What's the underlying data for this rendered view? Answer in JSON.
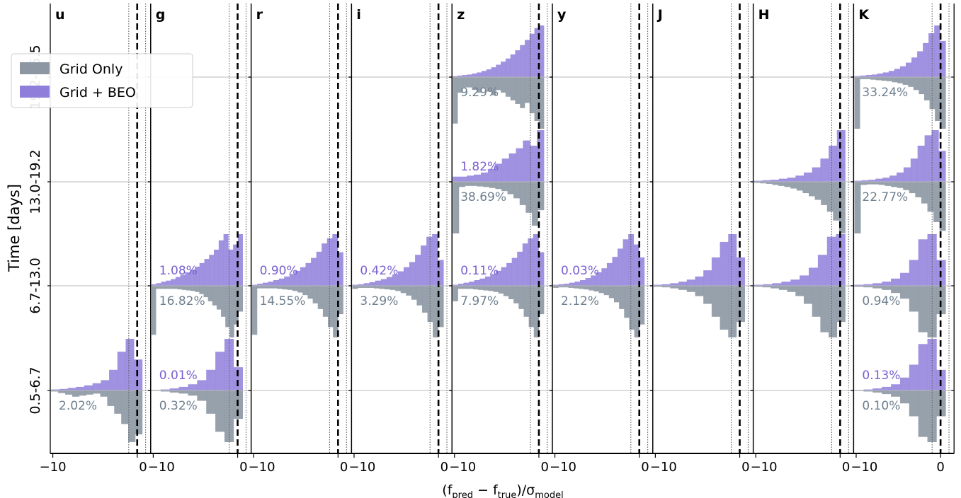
{
  "chart_data": {
    "type": "bar",
    "description_free": true,
    "panels": [
      "u",
      "g",
      "r",
      "i",
      "z",
      "y",
      "J",
      "H",
      "K"
    ],
    "time_bins": [
      "0.5-6.7",
      "6.7-13.0",
      "13.0-19.2",
      "19.2-25.5"
    ],
    "ylabel": "Time [days]",
    "xlabel": "(f_pred − f_true)/σ_model",
    "xlabel_parts": {
      "f": "(f",
      "pred": "pred",
      "minus": " − f",
      "true": "true",
      "close": ")/σ",
      "model": "model"
    },
    "x_ticks": [
      "−10",
      "0"
    ],
    "xlim": [
      -10.3,
      1.6
    ],
    "legend": {
      "position": "upper-left",
      "entries": [
        {
          "label": "Grid Only",
          "color": "#8c97a3"
        },
        {
          "label": "Grid + BEO",
          "color": "#8f7fdb"
        }
      ]
    },
    "colors": {
      "grid_only": "#8c97a3",
      "grid_beo": "#8f7fdb",
      "grid_only_text": "#6f7f8f",
      "grid_beo_text": "#7a5fd0"
    },
    "vlines": {
      "dashed": 0.0,
      "dotted": [
        -1.0,
        1.0
      ]
    },
    "annotations": [
      {
        "panel": "u",
        "row": "0.5-6.7",
        "grid_only": "2.02%",
        "grid_beo": null
      },
      {
        "panel": "g",
        "row": "0.5-6.7",
        "grid_only": "0.32%",
        "grid_beo": "0.01%"
      },
      {
        "panel": "g",
        "row": "6.7-13.0",
        "grid_only": "16.82%",
        "grid_beo": "1.08%"
      },
      {
        "panel": "r",
        "row": "6.7-13.0",
        "grid_only": "14.55%",
        "grid_beo": "0.90%"
      },
      {
        "panel": "i",
        "row": "6.7-13.0",
        "grid_only": "3.29%",
        "grid_beo": "0.42%"
      },
      {
        "panel": "z",
        "row": "6.7-13.0",
        "grid_only": "7.97%",
        "grid_beo": "0.11%"
      },
      {
        "panel": "z",
        "row": "13.0-19.2",
        "grid_only": "38.69%",
        "grid_beo": "1.82%"
      },
      {
        "panel": "z",
        "row": "19.2-25.5",
        "grid_only": "9.29%",
        "grid_beo": null
      },
      {
        "panel": "y",
        "row": "6.7-13.0",
        "grid_only": "2.12%",
        "grid_beo": "0.03%"
      },
      {
        "panel": "K",
        "row": "0.5-6.7",
        "grid_only": "0.10%",
        "grid_beo": "0.13%"
      },
      {
        "panel": "K",
        "row": "6.7-13.0",
        "grid_only": "0.94%",
        "grid_beo": null
      },
      {
        "panel": "K",
        "row": "13.0-19.2",
        "grid_only": "22.77%",
        "grid_beo": null
      },
      {
        "panel": "K",
        "row": "19.2-25.5",
        "grid_only": "33.24%",
        "grid_beo": null
      }
    ],
    "histograms": {
      "u": {
        "0.5-6.7": {
          "beo": [
            0.02,
            0.03,
            0.05,
            0.07,
            0.1,
            0.14,
            0.2,
            0.4,
            0.75,
            1.0,
            0.6
          ],
          "grid": [
            0.02,
            0.05,
            0.08,
            0.12,
            0.1,
            0.08,
            0.06,
            0.12,
            0.3,
            0.45,
            0.65,
            1.0,
            0.85
          ]
        }
      },
      "g": {
        "0.5-6.7": {
          "beo": [
            0.01,
            0.02,
            0.04,
            0.07,
            0.12,
            0.2,
            0.4,
            0.75,
            1.0,
            0.45
          ],
          "grid": [
            0.01,
            0.02,
            0.04,
            0.06,
            0.1,
            0.2,
            0.45,
            0.8,
            1.0,
            0.55
          ]
        },
        "6.7-13.0": {
          "beo": [
            0.03,
            0.05,
            0.08,
            0.1,
            0.13,
            0.17,
            0.21,
            0.26,
            0.31,
            0.37,
            0.44,
            0.52,
            0.6,
            0.7,
            0.88,
            1.0,
            0.7,
            0.8,
            1.0
          ],
          "grid": [
            0.95,
            0.06,
            0.06,
            0.06,
            0.06,
            0.06,
            0.07,
            0.08,
            0.09,
            0.1,
            0.12,
            0.16,
            0.22,
            0.3,
            0.38,
            0.46,
            0.6,
            0.8,
            1.0,
            0.75,
            0.5
          ]
        }
      },
      "r": {
        "6.7-13.0": {
          "beo": [
            0.02,
            0.04,
            0.06,
            0.08,
            0.11,
            0.14,
            0.18,
            0.23,
            0.29,
            0.36,
            0.44,
            0.54,
            0.66,
            0.82,
            0.92,
            1.0,
            0.65
          ],
          "grid": [
            0.95,
            0.05,
            0.05,
            0.05,
            0.05,
            0.06,
            0.07,
            0.08,
            0.1,
            0.13,
            0.18,
            0.25,
            0.34,
            0.45,
            0.6,
            0.8,
            1.0,
            0.55
          ]
        }
      },
      "i": {
        "6.7-13.0": {
          "beo": [
            0.02,
            0.03,
            0.05,
            0.07,
            0.1,
            0.13,
            0.17,
            0.22,
            0.28,
            0.36,
            0.46,
            0.6,
            0.78,
            0.95,
            1.0,
            0.5
          ],
          "grid": [
            0.06,
            0.04,
            0.04,
            0.04,
            0.05,
            0.06,
            0.07,
            0.08,
            0.1,
            0.14,
            0.19,
            0.27,
            0.38,
            0.52,
            0.7,
            1.0,
            0.8
          ]
        }
      },
      "z": {
        "6.7-13.0": {
          "beo": [
            0.02,
            0.04,
            0.06,
            0.08,
            0.11,
            0.14,
            0.18,
            0.23,
            0.29,
            0.36,
            0.44,
            0.54,
            0.66,
            0.82,
            0.92,
            1.0,
            0.65
          ],
          "grid": [
            0.3,
            0.06,
            0.06,
            0.06,
            0.07,
            0.08,
            0.09,
            0.1,
            0.12,
            0.15,
            0.2,
            0.26,
            0.34,
            0.45,
            0.6,
            0.8,
            1.0,
            0.55
          ]
        },
        "13.0-19.2": {
          "beo": [
            0.1,
            0.1,
            0.12,
            0.14,
            0.18,
            0.25,
            0.35,
            0.45,
            0.55,
            0.65,
            0.8,
            0.7,
            1.0
          ],
          "grid": [
            1.0,
            0.1,
            0.08,
            0.08,
            0.09,
            0.1,
            0.12,
            0.14,
            0.18,
            0.24,
            0.32,
            0.45,
            0.6,
            0.85,
            0.55
          ]
        },
        "19.2-25.5": {
          "beo": [
            0.02,
            0.03,
            0.04,
            0.05,
            0.07,
            0.09,
            0.12,
            0.15,
            0.19,
            0.24,
            0.3,
            0.36,
            0.44,
            0.52,
            0.62,
            0.72,
            0.84,
            0.95,
            1.0
          ],
          "grid": [
            0.9,
            0.3,
            0.2,
            0.2,
            0.25,
            0.3,
            0.22,
            0.28,
            0.35,
            0.25,
            0.3,
            0.38,
            0.45,
            0.52,
            0.6,
            0.5,
            0.7,
            0.85,
            1.0
          ]
        }
      },
      "y": {
        "6.7-13.0": {
          "beo": [
            0.02,
            0.03,
            0.04,
            0.06,
            0.08,
            0.11,
            0.15,
            0.2,
            0.26,
            0.34,
            0.44,
            0.56,
            0.72,
            0.9,
            1.0,
            0.8,
            0.55
          ],
          "grid": [
            0.04,
            0.03,
            0.03,
            0.04,
            0.05,
            0.06,
            0.07,
            0.09,
            0.11,
            0.14,
            0.18,
            0.24,
            0.32,
            0.45,
            0.62,
            0.85,
            1.0,
            0.75
          ]
        }
      },
      "J": {
        "6.7-13.0": {
          "beo": [
            0.02,
            0.03,
            0.05,
            0.08,
            0.12,
            0.18,
            0.3,
            0.55,
            0.85,
            1.0,
            0.55
          ],
          "grid": [
            0.02,
            0.03,
            0.05,
            0.08,
            0.12,
            0.2,
            0.35,
            0.6,
            0.85,
            1.0,
            0.7
          ]
        }
      },
      "H": {
        "6.7-13.0": {
          "beo": [
            0.02,
            0.03,
            0.05,
            0.08,
            0.12,
            0.2,
            0.35,
            0.6,
            0.95,
            1.0
          ],
          "grid": [
            0.02,
            0.03,
            0.05,
            0.08,
            0.12,
            0.2,
            0.35,
            0.6,
            0.9,
            1.0,
            0.7
          ]
        },
        "13.0-19.2": {
          "beo": [
            0.02,
            0.03,
            0.04,
            0.06,
            0.08,
            0.12,
            0.18,
            0.28,
            0.45,
            0.7,
            1.0
          ],
          "grid": [
            0.02,
            0.03,
            0.04,
            0.06,
            0.08,
            0.1,
            0.13,
            0.17,
            0.22,
            0.28,
            0.35,
            0.45,
            0.58,
            0.75,
            1.0
          ]
        }
      },
      "K": {
        "0.5-6.7": {
          "beo": [
            0.01,
            0.02,
            0.04,
            0.07,
            0.12,
            0.25,
            0.5,
            0.9,
            1.0,
            0.4
          ],
          "grid": [
            0.01,
            0.02,
            0.04,
            0.07,
            0.12,
            0.25,
            0.5,
            0.9,
            1.0,
            0.5
          ]
        },
        "6.7-13.0": {
          "beo": [
            0.02,
            0.03,
            0.05,
            0.08,
            0.14,
            0.25,
            0.5,
            0.9,
            1.0,
            0.5
          ],
          "grid": [
            0.02,
            0.03,
            0.05,
            0.08,
            0.14,
            0.25,
            0.5,
            0.9,
            1.0,
            0.55
          ]
        },
        "13.0-19.2": {
          "beo": [
            0.02,
            0.03,
            0.04,
            0.06,
            0.08,
            0.12,
            0.18,
            0.28,
            0.45,
            0.7,
            0.9,
            1.0,
            0.6
          ],
          "grid": [
            1.0,
            0.06,
            0.05,
            0.05,
            0.06,
            0.08,
            0.1,
            0.12,
            0.16,
            0.22,
            0.3,
            0.42,
            0.58,
            0.78,
            0.95
          ]
        },
        "19.2-25.5": {
          "beo": [
            0.02,
            0.03,
            0.04,
            0.05,
            0.07,
            0.09,
            0.12,
            0.16,
            0.21,
            0.28,
            0.38,
            0.5,
            0.66,
            0.85,
            1.0,
            0.7
          ],
          "grid": [
            1.0,
            0.04,
            0.04,
            0.05,
            0.06,
            0.07,
            0.08,
            0.1,
            0.12,
            0.15,
            0.19,
            0.25,
            0.33,
            0.45,
            0.62,
            0.85,
            1.0
          ]
        }
      }
    }
  }
}
